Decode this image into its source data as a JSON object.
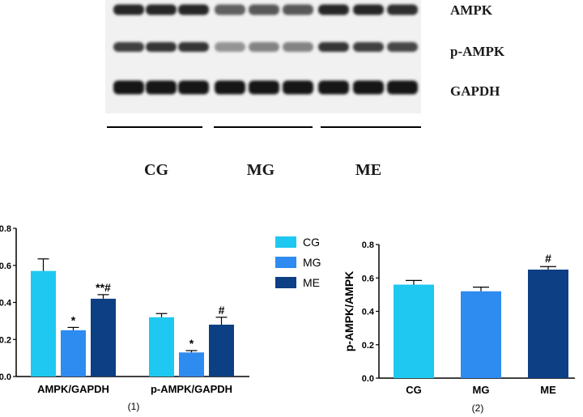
{
  "blot": {
    "band_labels": [
      "AMPK",
      "p-AMPK",
      "GAPDH"
    ],
    "group_labels": [
      "CG",
      "MG",
      "ME"
    ],
    "band_intensity": [
      [
        0.9,
        0.9,
        0.9,
        0.55,
        0.6,
        0.6,
        0.9,
        0.9,
        0.85
      ],
      [
        0.75,
        0.8,
        0.8,
        0.25,
        0.35,
        0.35,
        0.8,
        0.75,
        0.7
      ],
      [
        1,
        1,
        1,
        1,
        1,
        1,
        1,
        1,
        1
      ]
    ]
  },
  "colors": {
    "CG": "#1ec8f0",
    "MG": "#2e8bf0",
    "ME": "#0d3f84"
  },
  "chart_data": [
    {
      "type": "bar",
      "panel_label": "(1)",
      "categories": [
        "AMPK/GAPDH",
        "p-AMPK/GAPDH"
      ],
      "ylim": [
        0,
        0.8
      ],
      "yticks": [
        "0.0",
        "0.2",
        "0.4",
        "0.6",
        "0.8"
      ],
      "legend": [
        "CG",
        "MG",
        "ME"
      ],
      "legend_position": "right",
      "series": [
        {
          "name": "CG",
          "values": [
            0.57,
            0.32
          ],
          "errors": [
            0.065,
            0.02
          ],
          "annotations": [
            "",
            ""
          ]
        },
        {
          "name": "MG",
          "values": [
            0.25,
            0.13
          ],
          "errors": [
            0.015,
            0.01
          ],
          "annotations": [
            "*",
            "*"
          ]
        },
        {
          "name": "ME",
          "values": [
            0.42,
            0.28
          ],
          "errors": [
            0.022,
            0.04
          ],
          "annotations": [
            "**#",
            "#"
          ]
        }
      ]
    },
    {
      "type": "bar",
      "panel_label": "(2)",
      "ylabel": "p-AMPK/AMPK",
      "categories": [
        "CG",
        "MG",
        "ME"
      ],
      "ylim": [
        0,
        0.8
      ],
      "yticks": [
        "0.0",
        "0.2",
        "0.4",
        "0.6",
        "0.8"
      ],
      "values": [
        0.56,
        0.52,
        0.65
      ],
      "errors": [
        0.025,
        0.025,
        0.018
      ],
      "annotations": [
        "",
        "",
        "#"
      ]
    }
  ]
}
